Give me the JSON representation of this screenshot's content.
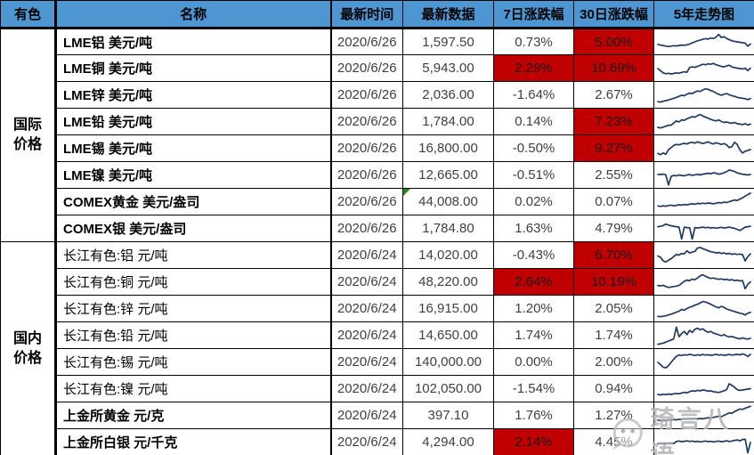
{
  "colors": {
    "header_bg": "#4D96D2",
    "red_bg": "#C00000",
    "spark_line": "#1F3A63",
    "border": "#000000",
    "flag_green": "#1E8A1E",
    "watermark_gray": "#AEAEAE"
  },
  "header": {
    "col_group": "有色",
    "col_name": "名称",
    "col_date": "最新时间",
    "col_value": "最新数据",
    "col_chg7": "7日涨跌幅",
    "col_chg30": "30日涨跌幅",
    "col_spark": "5年走势图"
  },
  "groups": [
    {
      "label": "国际价格",
      "row_count": 8
    },
    {
      "label": "国内价格",
      "row_count": 8
    }
  ],
  "watermark": {
    "icon": "wechat-icon",
    "text": "琦言八语"
  },
  "chart_data": {
    "type": "table",
    "columns": [
      "有色",
      "名称",
      "最新时间",
      "最新数据",
      "7日涨跌幅",
      "30日涨跌幅",
      "5年走势图"
    ],
    "rows": [
      {
        "group": "国际价格",
        "name": "LME铝 美元/吨",
        "bold": true,
        "date": "2020/6/26",
        "value": "1,597.50",
        "flag": false,
        "chg7": "0.73%",
        "chg7_red": false,
        "chg30": "5.00%",
        "chg30_red": true,
        "spark": [
          38,
          35,
          33,
          30,
          28,
          30,
          32,
          31,
          33,
          35,
          34,
          36,
          40,
          45,
          50,
          55,
          58,
          62,
          65,
          63,
          68,
          66,
          72,
          85,
          70,
          74,
          66,
          60,
          55,
          52,
          50,
          48,
          46,
          44,
          30,
          40
        ]
      },
      {
        "group": "国际价格",
        "name": "LME铜 美元/吨",
        "bold": true,
        "date": "2020/6/26",
        "value": "5,943.00",
        "flag": false,
        "chg7": "2.29%",
        "chg7_red": true,
        "chg30": "10.69%",
        "chg30_red": true,
        "spark": [
          50,
          40,
          30,
          26,
          28,
          25,
          27,
          30,
          28,
          32,
          35,
          33,
          55,
          58,
          56,
          60,
          65,
          70,
          68,
          72,
          70,
          74,
          68,
          64,
          60,
          58,
          62,
          66,
          58,
          54,
          52,
          50,
          48,
          52,
          40,
          52
        ]
      },
      {
        "group": "国际价格",
        "name": "LME锌 美元/吨",
        "bold": true,
        "date": "2020/6/26",
        "value": "2,036.00",
        "flag": false,
        "chg7": "-1.64%",
        "chg7_red": false,
        "chg30": "2.67%",
        "chg30_red": false,
        "spark": [
          20,
          18,
          22,
          25,
          28,
          32,
          36,
          40,
          45,
          50,
          48,
          55,
          60,
          58,
          65,
          70,
          68,
          75,
          80,
          78,
          72,
          68,
          60,
          55,
          50,
          55,
          58,
          52,
          48,
          45,
          40,
          38,
          36,
          34,
          30,
          34
        ]
      },
      {
        "group": "国际价格",
        "name": "LME铅 美元/吨",
        "bold": true,
        "date": "2020/6/26",
        "value": "1,784.00",
        "flag": false,
        "chg7": "0.14%",
        "chg7_red": false,
        "chg30": "7.23%",
        "chg30_red": true,
        "spark": [
          25,
          22,
          26,
          30,
          35,
          35,
          45,
          55,
          50,
          60,
          58,
          65,
          70,
          75,
          72,
          80,
          85,
          78,
          72,
          68,
          62,
          58,
          55,
          60,
          52,
          48,
          50,
          46,
          44,
          48,
          42,
          40,
          38,
          42,
          36,
          40
        ]
      },
      {
        "group": "国际价格",
        "name": "LME锡 美元/吨",
        "bold": true,
        "date": "2020/6/26",
        "value": "16,800.00",
        "flag": false,
        "chg7": "-0.50%",
        "chg7_red": false,
        "chg30": "9.27%",
        "chg30_red": true,
        "spark": [
          28,
          22,
          30,
          24,
          45,
          55,
          65,
          70,
          68,
          72,
          75,
          72,
          78,
          80,
          76,
          82,
          78,
          74,
          78,
          82,
          76,
          72,
          78,
          74,
          70,
          74,
          68,
          55,
          60,
          80,
          70,
          45,
          30,
          38,
          42,
          46
        ]
      },
      {
        "group": "国际价格",
        "name": "LME镍 美元/吨",
        "bold": true,
        "date": "2020/6/26",
        "value": "12,665.00",
        "flag": false,
        "chg7": "-0.51%",
        "chg7_red": false,
        "chg30": "2.55%",
        "chg30_red": false,
        "spark": [
          55,
          54,
          56,
          53,
          5,
          45,
          50,
          48,
          52,
          50,
          48,
          52,
          54,
          50,
          53,
          55,
          52,
          56,
          58,
          60,
          58,
          62,
          60,
          56,
          58,
          62,
          68,
          75,
          72,
          68,
          62,
          58,
          56,
          54,
          52,
          55
        ]
      },
      {
        "group": "国际价格",
        "name": "COMEX黄金 美元/盎司",
        "bold": true,
        "date": "2020/6/26",
        "value": "44,008.00",
        "flag": true,
        "chg7": "0.02%",
        "chg7_red": false,
        "chg30": "0.07%",
        "chg30_red": false,
        "spark": [
          32,
          30,
          33,
          31,
          34,
          36,
          33,
          35,
          38,
          36,
          39,
          37,
          40,
          42,
          40,
          44,
          42,
          45,
          43,
          46,
          44,
          42,
          45,
          48,
          46,
          50,
          48,
          52,
          56,
          60,
          58,
          64,
          70,
          78,
          85,
          92
        ]
      },
      {
        "group": "国际价格",
        "name": "COMEX银 美元/盎司",
        "bold": true,
        "date": "2020/6/26",
        "value": "1,784.80",
        "flag": false,
        "chg7": "1.63%",
        "chg7_red": false,
        "chg30": "4.79%",
        "chg30_red": false,
        "spark": [
          60,
          62,
          65,
          72,
          68,
          64,
          62,
          60,
          58,
          2,
          58,
          56,
          55,
          2,
          56,
          54,
          56,
          58,
          55,
          57,
          54,
          56,
          53,
          55,
          57,
          54,
          56,
          58,
          55,
          52,
          48,
          42,
          50,
          58,
          60,
          62
        ]
      },
      {
        "group": "国内价格",
        "name": "长江有色:铝 元/吨",
        "bold": false,
        "date": "2020/6/24",
        "value": "14,020.00",
        "flag": false,
        "chg7": "-0.43%",
        "chg7_red": false,
        "chg30": "6.70%",
        "chg30_red": true,
        "spark": [
          48,
          42,
          25,
          20,
          28,
          35,
          45,
          55,
          52,
          60,
          58,
          72,
          62,
          66,
          70,
          85,
          88,
          82,
          78,
          72,
          68,
          66,
          62,
          64,
          60,
          62,
          58,
          60,
          56,
          58,
          55,
          57,
          54,
          25,
          45,
          58
        ]
      },
      {
        "group": "国内价格",
        "name": "长江有色:铜 元/吨",
        "bold": false,
        "date": "2020/6/24",
        "value": "48,220.00",
        "flag": false,
        "chg7": "2.64%",
        "chg7_red": true,
        "chg30": "10.19%",
        "chg30_red": true,
        "spark": [
          35,
          33,
          36,
          30,
          26,
          28,
          30,
          32,
          35,
          45,
          55,
          60,
          58,
          65,
          62,
          70,
          80,
          85,
          78,
          72,
          68,
          70,
          66,
          64,
          66,
          62,
          64,
          60,
          62,
          58,
          60,
          56,
          58,
          20,
          40,
          52
        ]
      },
      {
        "group": "国内价格",
        "name": "长江有色:锌 元/吨",
        "bold": false,
        "date": "2020/6/24",
        "value": "16,915.00",
        "flag": false,
        "chg7": "1.20%",
        "chg7_red": false,
        "chg30": "2.05%",
        "chg30_red": false,
        "spark": [
          15,
          14,
          16,
          18,
          22,
          26,
          30,
          35,
          40,
          48,
          44,
          52,
          58,
          62,
          68,
          72,
          78,
          85,
          82,
          78,
          72,
          66,
          60,
          55,
          62,
          58,
          50,
          46,
          42,
          38,
          34,
          30,
          28,
          22,
          30,
          34
        ]
      },
      {
        "group": "国内价格",
        "name": "长江有色:铅 元/吨",
        "bold": false,
        "date": "2020/6/24",
        "value": "14,650.00",
        "flag": false,
        "chg7": "1.74%",
        "chg7_red": false,
        "chg30": "1.74%",
        "chg30_red": false,
        "spark": [
          10,
          12,
          15,
          20,
          25,
          30,
          35,
          90,
          45,
          60,
          70,
          55,
          75,
          65,
          80,
          85,
          78,
          82,
          72,
          66,
          70,
          62,
          58,
          54,
          50,
          55,
          48,
          44,
          46,
          42,
          38,
          35,
          40,
          36,
          34,
          38
        ]
      },
      {
        "group": "国内价格",
        "name": "长江有色:锡 元/吨",
        "bold": false,
        "date": "2020/6/24",
        "value": "140,000.00",
        "flag": false,
        "chg7": "0.00%",
        "chg7_red": false,
        "chg30": "2.00%",
        "chg30_red": false,
        "spark": [
          50,
          40,
          28,
          24,
          35,
          50,
          65,
          78,
          85,
          82,
          86,
          84,
          88,
          85,
          82,
          86,
          83,
          87,
          84,
          86,
          83,
          85,
          88,
          84,
          86,
          83,
          85,
          87,
          84,
          86,
          88,
          85,
          90,
          86,
          78,
          88
        ]
      },
      {
        "group": "国内价格",
        "name": "长江有色:镍 元/吨",
        "bold": false,
        "date": "2020/6/24",
        "value": "102,050.00",
        "flag": false,
        "chg7": "-1.54%",
        "chg7_red": false,
        "chg30": "0.94%",
        "chg30_red": false,
        "spark": [
          25,
          23,
          26,
          24,
          27,
          25,
          28,
          30,
          28,
          32,
          35,
          33,
          38,
          42,
          40,
          44,
          42,
          46,
          44,
          40,
          42,
          38,
          36,
          34,
          38,
          42,
          48,
          75,
          68,
          58,
          48,
          44,
          46,
          48,
          50,
          52
        ]
      },
      {
        "group": "国内价格",
        "name": "上金所黄金 元/克",
        "bold": true,
        "date": "2020/6/24",
        "value": "397.10",
        "flag": false,
        "chg7": "1.76%",
        "chg7_red": false,
        "chg30": "1.27%",
        "chg30_red": false,
        "spark": [
          30,
          28,
          31,
          29,
          32,
          30,
          33,
          31,
          34,
          32,
          35,
          33,
          36,
          34,
          37,
          35,
          38,
          36,
          39,
          41,
          39,
          43,
          45,
          48,
          46,
          52,
          58,
          64,
          62,
          70,
          76,
          82,
          80,
          86,
          90,
          95
        ]
      },
      {
        "group": "国内价格",
        "name": "上金所白银 元/千克",
        "bold": true,
        "date": "2020/6/24",
        "value": "4,294.00",
        "flag": false,
        "chg7": "2.14%",
        "chg7_red": true,
        "chg30": "4.45%",
        "chg30_red": false,
        "spark": [
          44,
          45,
          43,
          46,
          44,
          47,
          45,
          55,
          57,
          54,
          56,
          58,
          55,
          57,
          54,
          56,
          53,
          55,
          57,
          54,
          56,
          53,
          55,
          57,
          54,
          56,
          58,
          55,
          57,
          60,
          62,
          58,
          64,
          66,
          2,
          50
        ]
      }
    ]
  }
}
